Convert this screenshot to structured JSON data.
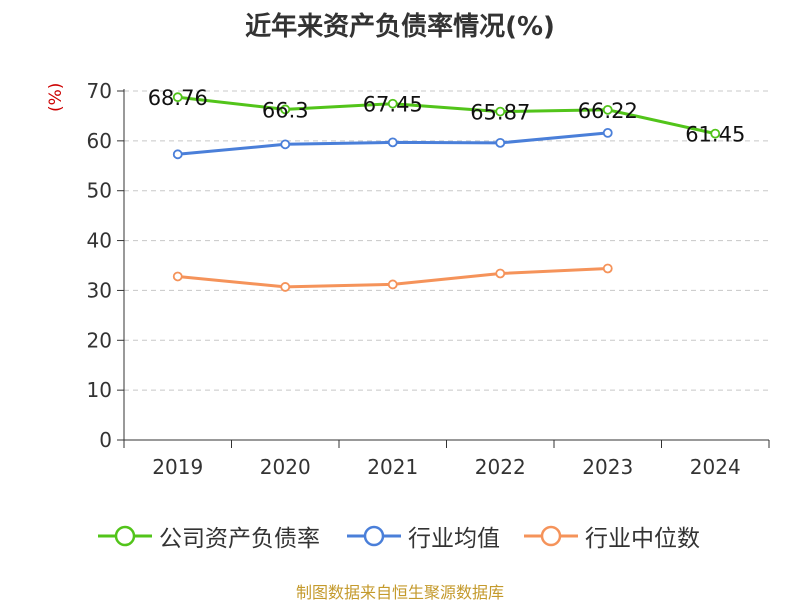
{
  "chart_data": {
    "type": "line",
    "title": "近年来资产负债率情况(%)",
    "ylabel": "(%)",
    "xlabel": "",
    "ylim": [
      0,
      70
    ],
    "yticks": [
      0,
      10,
      20,
      30,
      40,
      50,
      60,
      70
    ],
    "categories": [
      "2019",
      "2020",
      "2021",
      "2022",
      "2023",
      "2024"
    ],
    "grid": true,
    "legend_position": "bottom",
    "series": [
      {
        "name": "公司资产负债率",
        "color": "#52c41a",
        "values": [
          68.76,
          66.3,
          67.45,
          65.87,
          66.22,
          61.45
        ],
        "labels": [
          "68.76",
          "66.3",
          "67.45",
          "65.87",
          "66.22",
          "61.45"
        ]
      },
      {
        "name": "行业均值",
        "color": "#4a7fd9",
        "values": [
          57.3,
          59.3,
          59.7,
          59.6,
          61.6,
          null
        ]
      },
      {
        "name": "行业中位数",
        "color": "#f5935a",
        "values": [
          32.8,
          30.7,
          31.2,
          33.4,
          34.4,
          null
        ]
      }
    ]
  },
  "source": "制图数据来自恒生聚源数据库"
}
